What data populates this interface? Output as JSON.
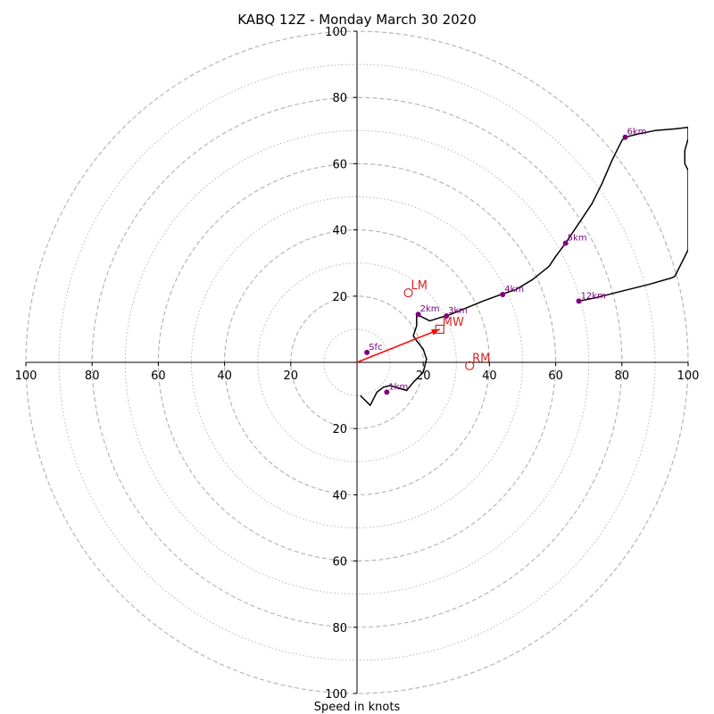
{
  "chart_data": {
    "type": "hodograph",
    "title": "KABQ 12Z - Monday March 30 2020",
    "xlabel": "Speed in knots",
    "range": [
      -100,
      100
    ],
    "ring_major_step": 20,
    "ring_minor_step": 10,
    "tick_labels": [
      "100",
      "80",
      "60",
      "40",
      "20",
      "20",
      "40",
      "60",
      "80",
      "100"
    ],
    "y_tick_labels": [
      "100",
      "80",
      "60",
      "40",
      "20",
      "20",
      "40",
      "60",
      "80",
      "100"
    ],
    "trace": [
      [
        1,
        -10
      ],
      [
        4,
        -13
      ],
      [
        6,
        -9
      ],
      [
        8,
        -7.5
      ],
      [
        10,
        -7
      ],
      [
        15,
        -8.5
      ],
      [
        17,
        -6
      ],
      [
        20,
        -3
      ],
      [
        21,
        1
      ],
      [
        20,
        4
      ],
      [
        18,
        6.5
      ],
      [
        17,
        8
      ],
      [
        18,
        11
      ],
      [
        18,
        14.5
      ],
      [
        22,
        12.5
      ],
      [
        25,
        13.5
      ],
      [
        27,
        14
      ],
      [
        32,
        16
      ],
      [
        38,
        18.5
      ],
      [
        43.5,
        20.5
      ],
      [
        48,
        22
      ],
      [
        53,
        25
      ],
      [
        58,
        29
      ],
      [
        60,
        32
      ],
      [
        63,
        36
      ],
      [
        67,
        42
      ],
      [
        71,
        48
      ],
      [
        74,
        54
      ],
      [
        77,
        61
      ],
      [
        80,
        67
      ],
      [
        81,
        68
      ],
      [
        85,
        69
      ],
      [
        90,
        70
      ],
      [
        96,
        70.5
      ],
      [
        100,
        71
      ],
      [
        100,
        68
      ],
      [
        100,
        67.5
      ],
      [
        99,
        64
      ],
      [
        99,
        62
      ],
      [
        99,
        60
      ],
      [
        100,
        58
      ],
      [
        100,
        34
      ],
      [
        96,
        26
      ],
      [
        95,
        25.5
      ],
      [
        88,
        23.5
      ],
      [
        80,
        21.5
      ],
      [
        72,
        19.5
      ],
      [
        67,
        18.5
      ]
    ],
    "height_markers": [
      {
        "label": "Sfc",
        "u": 3,
        "v": 3
      },
      {
        "label": "1km",
        "u": 9,
        "v": -9
      },
      {
        "label": "2km",
        "u": 18.5,
        "v": 14.5
      },
      {
        "label": "3km",
        "u": 27,
        "v": 14
      },
      {
        "label": "4km",
        "u": 44,
        "v": 20.5
      },
      {
        "label": "5km",
        "u": 63,
        "v": 36
      },
      {
        "label": "6km",
        "u": 81,
        "v": 68
      },
      {
        "label": "12km",
        "u": 67,
        "v": 18.5
      }
    ],
    "storm_motion": [
      {
        "label": "LM",
        "u": 15.5,
        "v": 21,
        "shape": "circle"
      },
      {
        "label": "MW",
        "u": 25,
        "v": 10,
        "shape": "square"
      },
      {
        "label": "RM",
        "u": 34,
        "v": -1,
        "shape": "circle"
      }
    ],
    "shear_vector": {
      "u": 25,
      "v": 10
    },
    "colors": {
      "trace": "#000000",
      "markers": "#800080",
      "storm_motion": "#d62728",
      "arrow": "#ff0000",
      "grid": "#b0b0b0"
    }
  }
}
